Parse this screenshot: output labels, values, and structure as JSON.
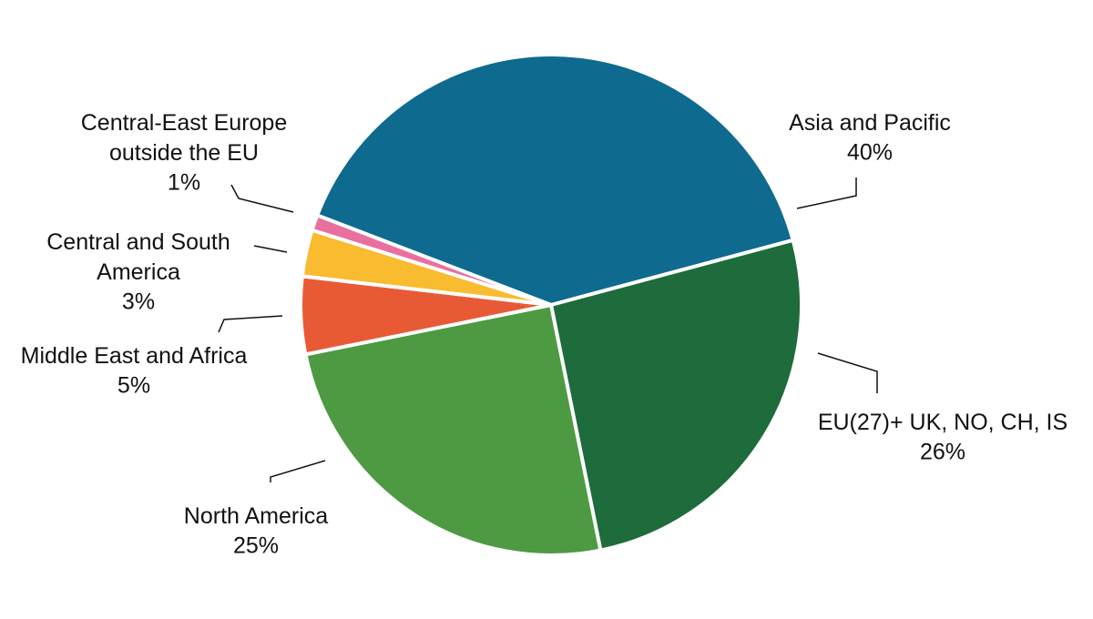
{
  "chart_data": {
    "type": "pie",
    "categories": [
      "Asia and Pacific",
      "EU(27)+ UK, NO, CH, IS",
      "North America",
      "Middle East and Africa",
      "Central and South\nAmerica",
      "Central-East Europe\noutside the EU"
    ],
    "values": [
      40,
      26,
      25,
      5,
      3,
      1
    ],
    "value_labels": [
      "40%",
      "26%",
      "25%",
      "5%",
      "3%",
      "1%"
    ],
    "colors": [
      "#0f6a8f",
      "#1e6b3c",
      "#4e9a42",
      "#e85a35",
      "#f9bb2f",
      "#e8709e"
    ]
  }
}
